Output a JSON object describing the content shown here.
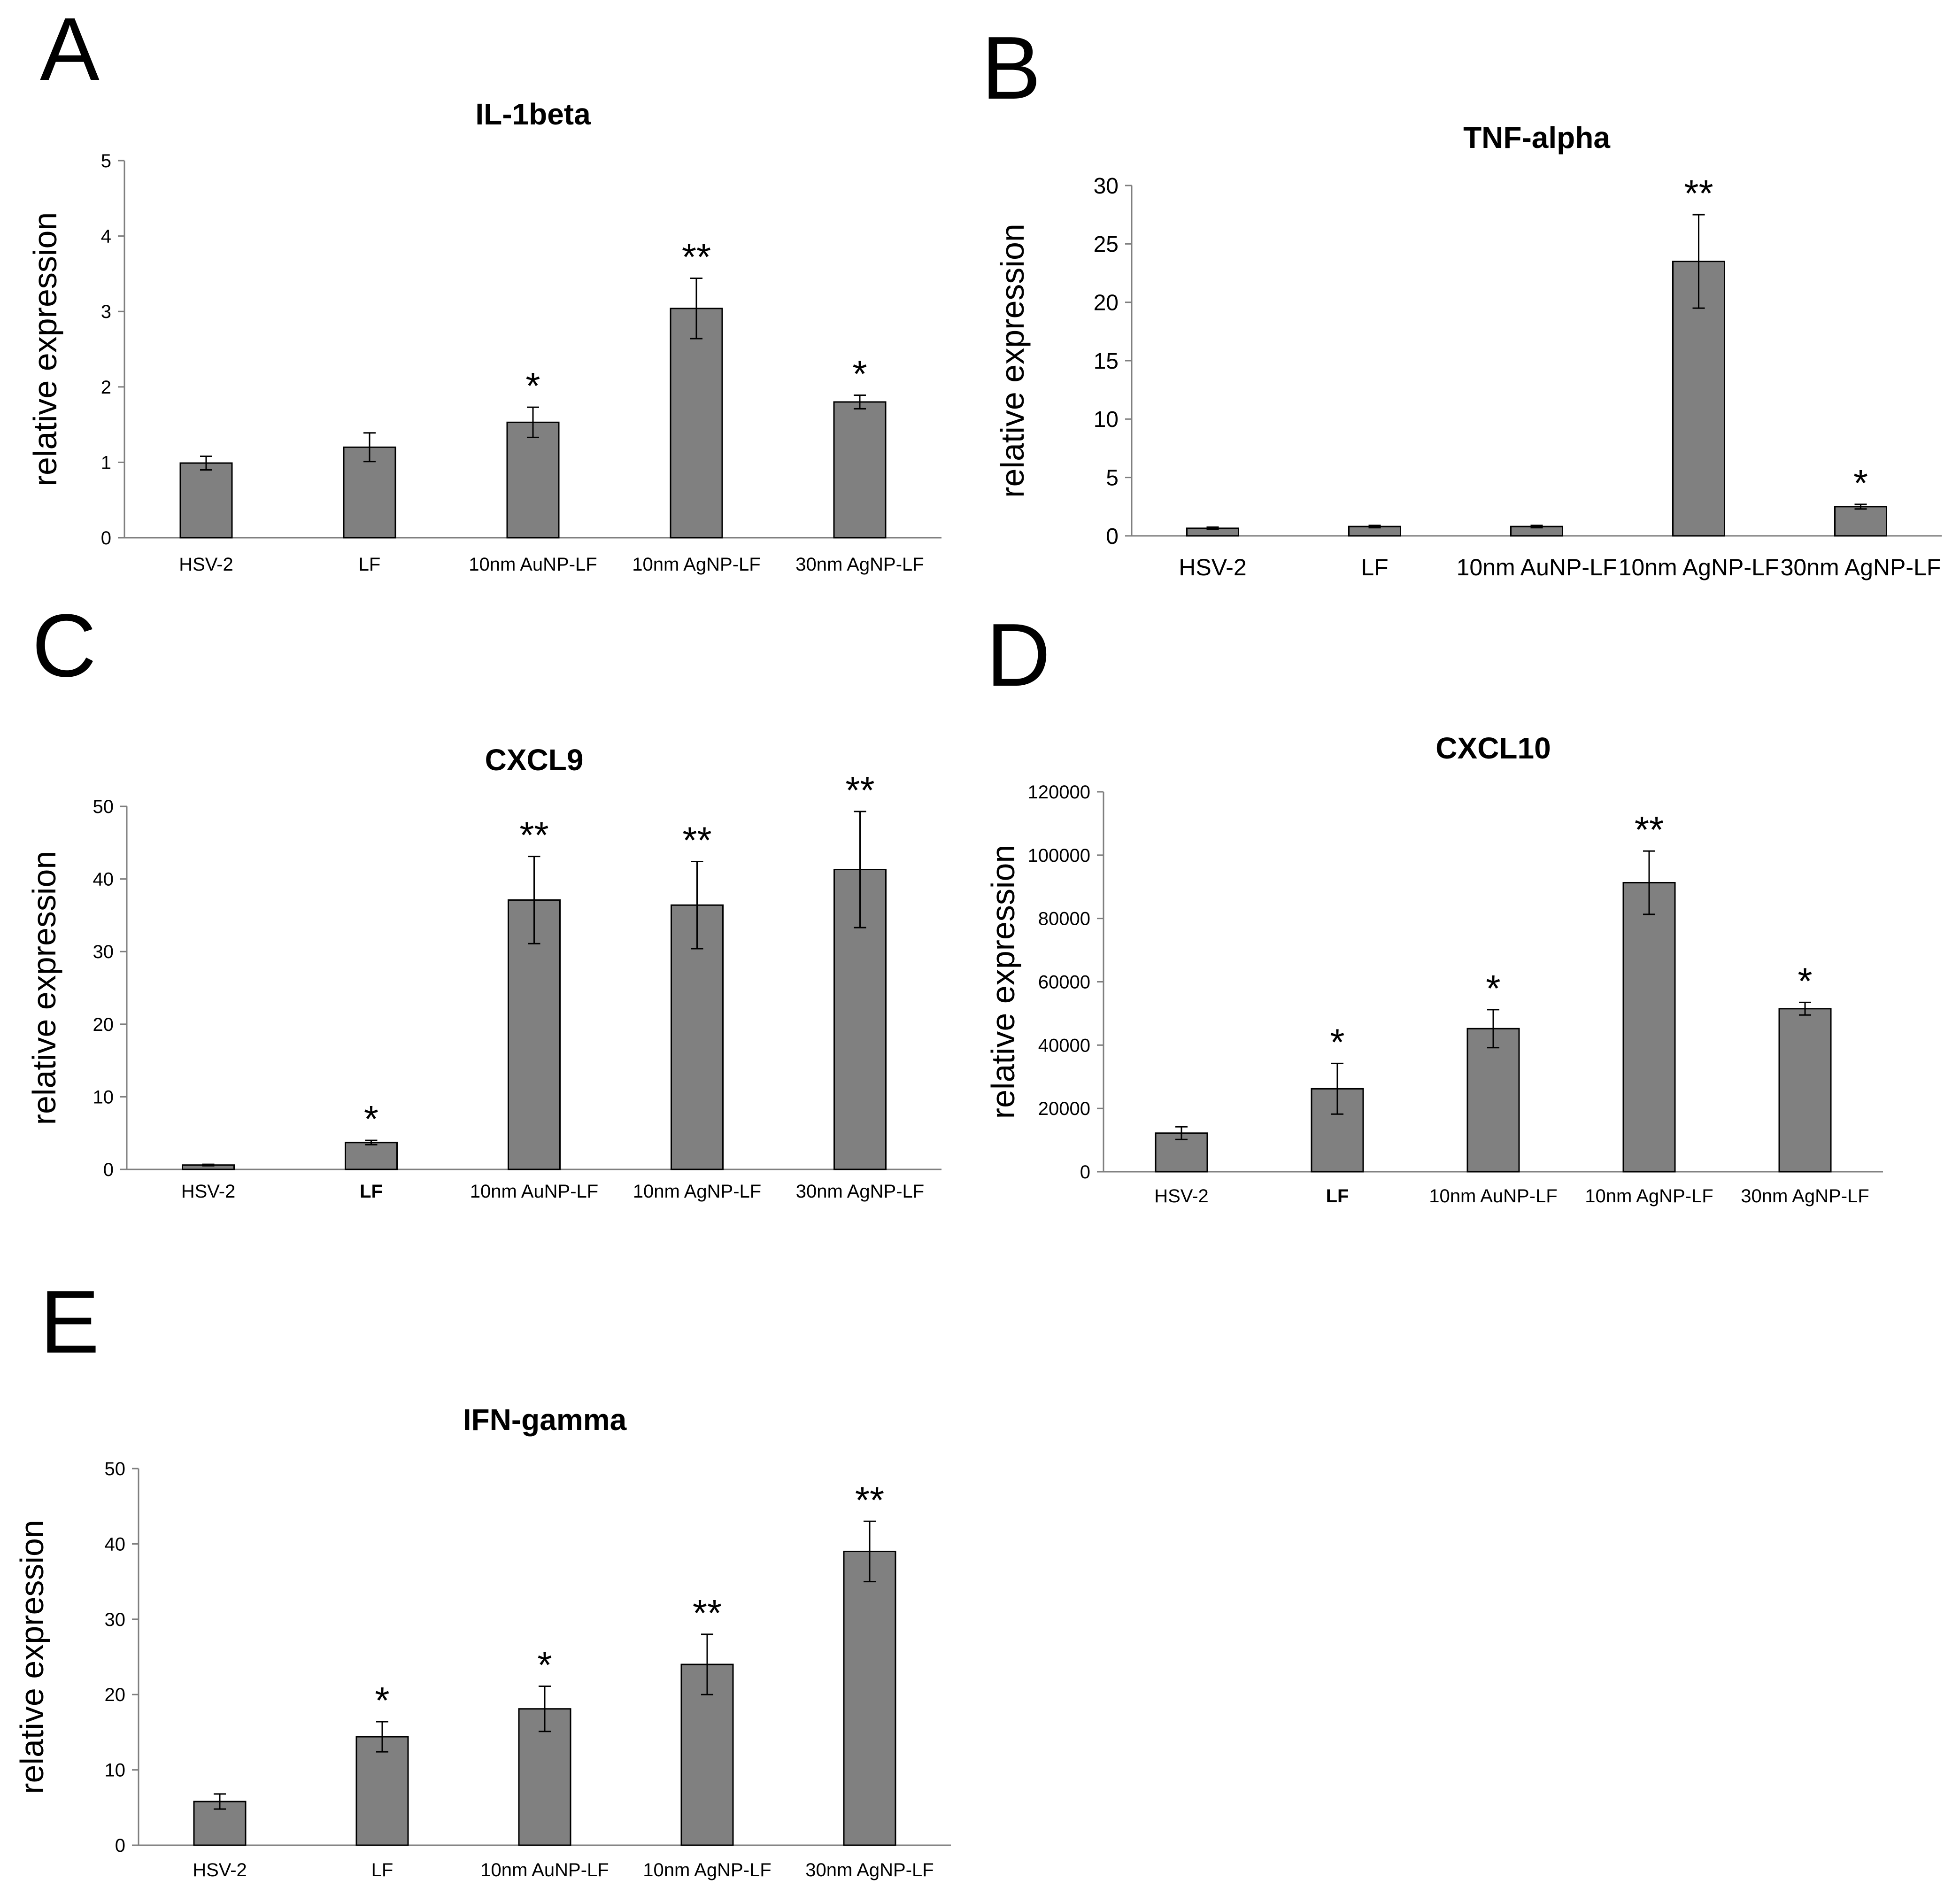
{
  "figure": {
    "background": "#ffffff",
    "bar_color": "#808080",
    "stroke_color": "#000000"
  },
  "chart_data": [
    {
      "panel": "A",
      "type": "bar",
      "title": "IL-1beta",
      "ylabel": "relative expression",
      "xlabel": "",
      "ylim": [
        0,
        5
      ],
      "yticks": [
        0,
        1,
        2,
        3,
        4,
        5
      ],
      "ytick_labels": [
        "0",
        "1",
        "2",
        "3",
        "4",
        "5"
      ],
      "categories": [
        "HSV-2",
        "LF",
        "10nm AuNP-LF",
        "10nm AgNP-LF",
        "30nm AgNP-LF"
      ],
      "values": [
        0.99,
        1.2,
        1.53,
        3.04,
        1.8
      ],
      "errors": [
        0.09,
        0.19,
        0.2,
        0.4,
        0.09
      ],
      "significance": [
        "",
        "",
        "*",
        "**",
        "*"
      ],
      "bold_category_labels": false,
      "category_label_size": "small"
    },
    {
      "panel": "B",
      "type": "bar",
      "title": "TNF-alpha",
      "ylabel": "relative expression",
      "xlabel": "",
      "ylim": [
        0,
        30
      ],
      "yticks": [
        0,
        5,
        10,
        15,
        20,
        25,
        30
      ],
      "ytick_labels": [
        "0",
        "5",
        "10",
        "15",
        "20",
        "25",
        "30"
      ],
      "categories": [
        "HSV-2",
        "LF",
        "10nm AuNP-LF",
        "10nm AgNP-LF",
        "30nm AgNP-LF"
      ],
      "values": [
        0.65,
        0.8,
        0.8,
        23.5,
        2.5
      ],
      "errors": [
        0.1,
        0.1,
        0.1,
        4.0,
        0.2
      ],
      "significance": [
        "",
        "",
        "",
        "**",
        "*"
      ],
      "bold_category_labels": false,
      "category_label_size": "large"
    },
    {
      "panel": "C",
      "type": "bar",
      "title": "CXCL9",
      "ylabel": "relative expression",
      "xlabel": "",
      "ylim": [
        0,
        50
      ],
      "yticks": [
        0,
        10,
        20,
        30,
        40,
        50
      ],
      "ytick_labels": [
        "0",
        "10",
        "20",
        "30",
        "40",
        "50"
      ],
      "categories": [
        "HSV-2",
        "LF",
        "10nm AuNP-LF",
        "10nm AgNP-LF",
        "30nm AgNP-LF"
      ],
      "values": [
        0.6,
        3.7,
        37.1,
        36.4,
        41.3
      ],
      "errors": [
        0.1,
        0.3,
        6.0,
        6.0,
        8.0
      ],
      "significance": [
        "",
        "*",
        "**",
        "**",
        "**"
      ],
      "bold_category_labels": false,
      "bold_category_index": 1,
      "category_label_size": "small"
    },
    {
      "panel": "D",
      "type": "bar",
      "title": "CXCL10",
      "ylabel": "relative expression",
      "xlabel": "",
      "ylim": [
        0,
        120000
      ],
      "yticks": [
        0,
        20000,
        40000,
        60000,
        80000,
        100000,
        120000
      ],
      "ytick_labels": [
        "0",
        "20000",
        "40000",
        "60000",
        "80000",
        "100000",
        "120000"
      ],
      "categories": [
        "HSV-2",
        "LF",
        "10nm AuNP-LF",
        "10nm AgNP-LF",
        "30nm AgNP-LF"
      ],
      "values": [
        12200,
        26200,
        45200,
        91300,
        51500
      ],
      "errors": [
        2000,
        8000,
        6000,
        10000,
        2000
      ],
      "significance": [
        "",
        "*",
        "*",
        "**",
        "*"
      ],
      "bold_category_labels": false,
      "bold_category_index": 1,
      "category_label_size": "small"
    },
    {
      "panel": "E",
      "type": "bar",
      "title": "IFN-gamma",
      "ylabel": "relative expression",
      "xlabel": "",
      "ylim": [
        0,
        50
      ],
      "yticks": [
        0,
        10,
        20,
        30,
        40,
        50
      ],
      "ytick_labels": [
        "0",
        "10",
        "20",
        "30",
        "40",
        "50"
      ],
      "categories": [
        "HSV-2",
        "LF",
        "10nm AuNP-LF",
        "10nm AgNP-LF",
        "30nm AgNP-LF"
      ],
      "values": [
        5.8,
        14.4,
        18.1,
        24.0,
        39.0
      ],
      "errors": [
        1.0,
        2.0,
        3.0,
        4.0,
        4.0
      ],
      "significance": [
        "",
        "*",
        "*",
        "**",
        "**"
      ],
      "bold_category_labels": false,
      "category_label_size": "small"
    }
  ]
}
